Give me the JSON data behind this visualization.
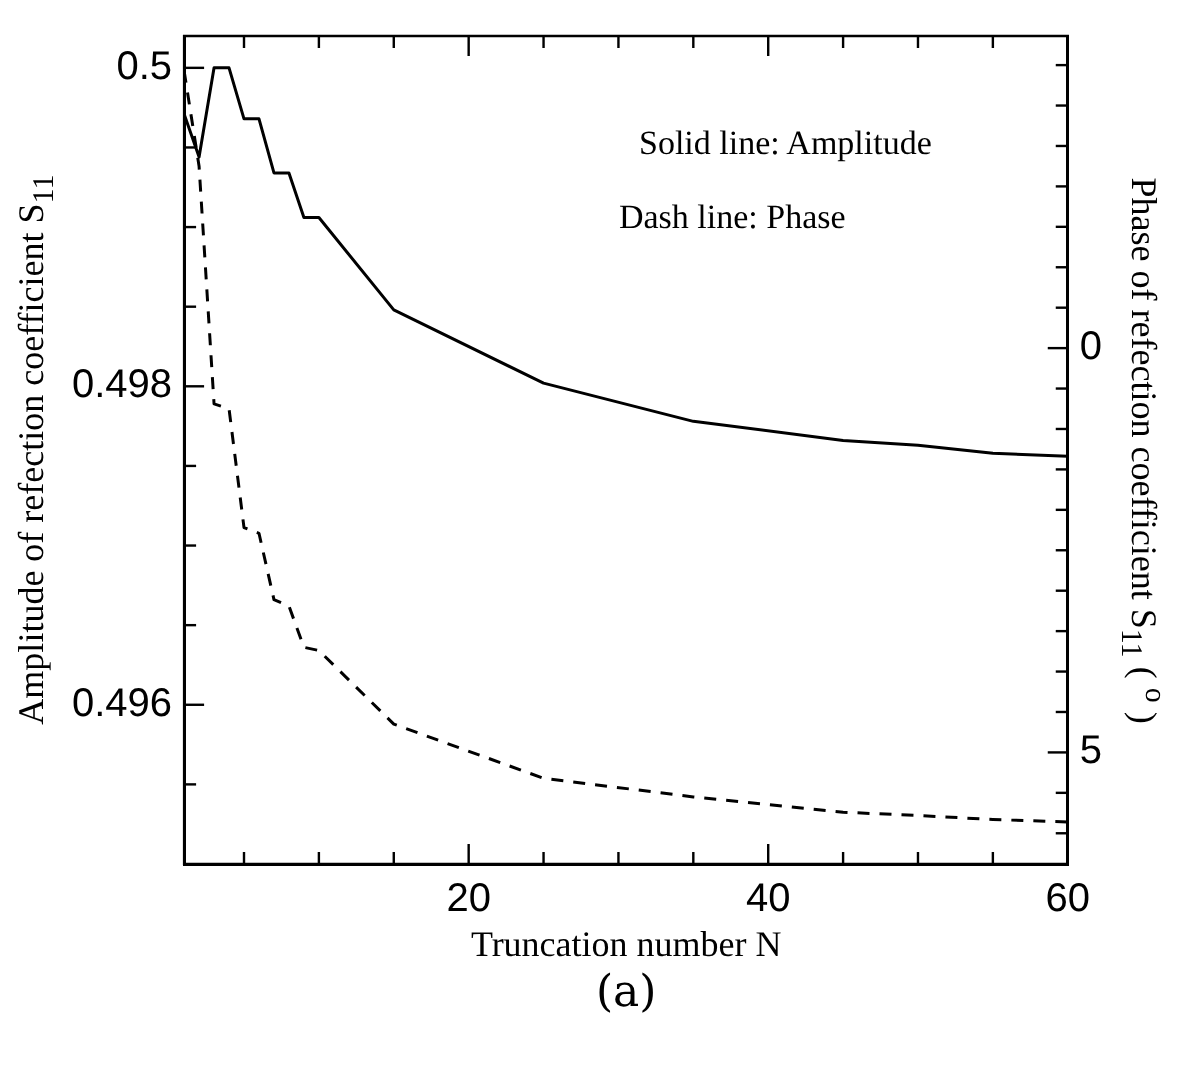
{
  "chart_data": {
    "type": "line",
    "xlabel": "Truncation number N",
    "ylabel": "Amplitude of refection coefficient S$_{11}$",
    "y2label": "Phase of refection coefficient S$_{11}$ ( $^{o}$ )",
    "annotations": [
      "Solid line: Amplitude",
      "Dash line: Phase",
      "(a)"
    ],
    "xlim": [
      1,
      60
    ],
    "xticks": [
      {
        "value": 5,
        "label": null
      },
      {
        "value": 10,
        "label": null
      },
      {
        "value": 15,
        "label": null
      },
      20,
      {
        "value": 25,
        "label": null
      },
      {
        "value": 30,
        "label": null
      },
      {
        "value": 35,
        "label": null
      },
      40,
      {
        "value": 45,
        "label": null
      },
      {
        "value": 50,
        "label": null
      },
      {
        "value": 55,
        "label": null
      },
      60
    ],
    "ylim": [
      0.495,
      0.5002
    ],
    "yticks": [
      {
        "value": 0.4955,
        "label": null
      },
      0.496,
      {
        "value": 0.4965,
        "label": null
      },
      {
        "value": 0.497,
        "label": null
      },
      {
        "value": 0.4975,
        "label": null
      },
      0.498,
      {
        "value": 0.4985,
        "label": null
      },
      {
        "value": 0.499,
        "label": null
      },
      {
        "value": 0.4995,
        "label": null
      },
      0.5
    ],
    "y2lim": [
      6.38,
      -3.86
    ],
    "y2ticks": [
      {
        "value": -3.5,
        "label": null
      },
      {
        "value": -3,
        "label": null
      },
      {
        "value": -2.5,
        "label": null
      },
      {
        "value": -2,
        "label": null
      },
      {
        "value": -1.5,
        "label": null
      },
      {
        "value": -1,
        "label": null
      },
      {
        "value": -0.5,
        "label": null
      },
      0,
      {
        "value": 0.5,
        "label": null
      },
      {
        "value": 1,
        "label": null
      },
      {
        "value": 1.5,
        "label": null
      },
      {
        "value": 2,
        "label": null
      },
      {
        "value": 2.5,
        "label": null
      },
      {
        "value": 3,
        "label": null
      },
      {
        "value": 3.5,
        "label": null
      },
      {
        "value": 4,
        "label": null
      },
      {
        "value": 4.5,
        "label": null
      },
      5,
      {
        "value": 5.5,
        "label": null
      },
      {
        "value": 6,
        "label": null
      }
    ],
    "grid": false,
    "legend": false,
    "marker": "none",
    "series": [
      {
        "color": "#000000",
        "line_style": "solid",
        "x": [
          1,
          2,
          3,
          4,
          5,
          6,
          7,
          8,
          9,
          10,
          15,
          25,
          35,
          45,
          50,
          55,
          60
        ],
        "values": [
          0.49971,
          0.49944,
          0.5,
          0.5,
          0.49968,
          0.49968,
          0.49934,
          0.49934,
          0.49906,
          0.49906,
          0.49848,
          0.49802,
          0.49778,
          0.49766,
          0.49763,
          0.49758,
          0.49756
        ]
      },
      {
        "color": "#000000",
        "line_style": "dashed",
        "axis": "y2",
        "x": [
          1,
          2,
          3,
          4,
          5,
          6,
          7,
          8,
          9,
          10,
          15,
          25,
          35,
          45,
          50,
          55,
          60
        ],
        "values": [
          -3.43,
          -2.25,
          0.69,
          0.75,
          2.22,
          2.29,
          3.11,
          3.19,
          3.7,
          3.74,
          4.65,
          5.32,
          5.55,
          5.74,
          5.78,
          5.83,
          5.86
        ]
      }
    ]
  }
}
